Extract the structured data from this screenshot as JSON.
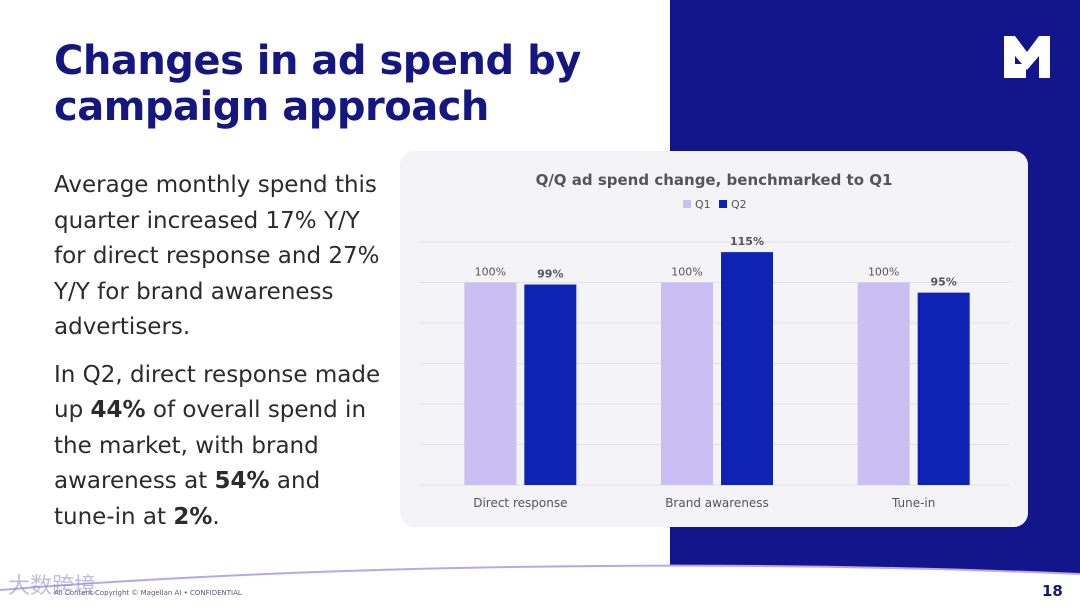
{
  "slide": {
    "title_line1": "Changes in ad spend by",
    "title_line2": "campaign approach",
    "paragraph1": "Average monthly spend this quarter increased 17% Y/Y for direct response and 27% Y/Y for brand awareness advertisers.",
    "paragraph2": {
      "part1": "In Q2, direct response made up ",
      "bold1": "44%",
      "part2": " of overall spend in the market, with brand awareness at ",
      "bold2": "54%",
      "part3": " and tune-in at ",
      "bold3": "2%",
      "part4": "."
    },
    "footer": "All Content Copyright © Magellan AI • CONFIDENTIAL",
    "page_number": "18",
    "watermark": "大数跨境",
    "logo_icon": "magellan-m-logo"
  },
  "colors": {
    "brand_navy": "#13168a",
    "title_navy": "#14177f",
    "q1_color": "#c9bff2",
    "q2_color": "#0e22b4"
  },
  "chart_data": {
    "type": "bar",
    "title": "Q/Q ad spend change, benchmarked to Q1",
    "categories": [
      "Direct response",
      "Brand awareness",
      "Tune-in"
    ],
    "series": [
      {
        "name": "Q1",
        "values": [
          100,
          100,
          100
        ],
        "labels": [
          "100%",
          "100%",
          "100%"
        ]
      },
      {
        "name": "Q2",
        "values": [
          99,
          115,
          95
        ],
        "labels": [
          "99%",
          "115%",
          "95%"
        ]
      }
    ],
    "ylim": [
      0,
      120
    ],
    "grid": true,
    "legend": "top-center"
  }
}
